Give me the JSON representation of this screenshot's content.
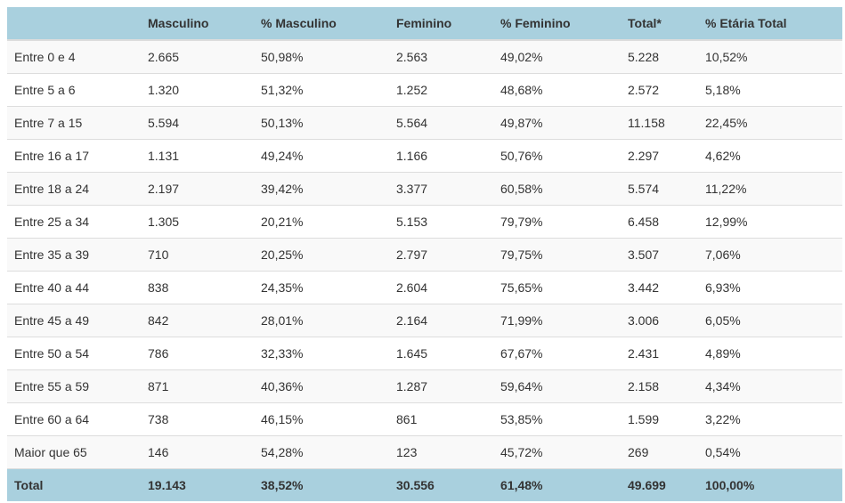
{
  "table": {
    "headers": [
      "",
      "Masculino",
      "% Masculino",
      "Feminino",
      "% Feminino",
      "Total*",
      "% Etária Total"
    ],
    "rows": [
      [
        "Entre 0 e 4",
        "2.665",
        "50,98%",
        "2.563",
        "49,02%",
        "5.228",
        "10,52%"
      ],
      [
        "Entre 5 a 6",
        "1.320",
        "51,32%",
        "1.252",
        "48,68%",
        "2.572",
        "5,18%"
      ],
      [
        "Entre 7 a 15",
        "5.594",
        "50,13%",
        "5.564",
        "49,87%",
        "11.158",
        "22,45%"
      ],
      [
        "Entre 16 a 17",
        "1.131",
        "49,24%",
        "1.166",
        "50,76%",
        "2.297",
        "4,62%"
      ],
      [
        "Entre 18 a 24",
        "2.197",
        "39,42%",
        "3.377",
        "60,58%",
        "5.574",
        "11,22%"
      ],
      [
        "Entre 25 a 34",
        "1.305",
        "20,21%",
        "5.153",
        "79,79%",
        "6.458",
        "12,99%"
      ],
      [
        "Entre 35 a 39",
        "710",
        "20,25%",
        "2.797",
        "79,75%",
        "3.507",
        "7,06%"
      ],
      [
        "Entre 40 a 44",
        "838",
        "24,35%",
        "2.604",
        "75,65%",
        "3.442",
        "6,93%"
      ],
      [
        "Entre 45 a 49",
        "842",
        "28,01%",
        "2.164",
        "71,99%",
        "3.006",
        "6,05%"
      ],
      [
        "Entre 50 a 54",
        "786",
        "32,33%",
        "1.645",
        "67,67%",
        "2.431",
        "4,89%"
      ],
      [
        "Entre 55 a 59",
        "871",
        "40,36%",
        "1.287",
        "59,64%",
        "2.158",
        "4,34%"
      ],
      [
        "Entre 60 a 64",
        "738",
        "46,15%",
        "861",
        "53,85%",
        "1.599",
        "3,22%"
      ],
      [
        "Maior que 65",
        "146",
        "54,28%",
        "123",
        "45,72%",
        "269",
        "0,54%"
      ]
    ],
    "footer": [
      "Total",
      "19.143",
      "38,52%",
      "30.556",
      "61,48%",
      "49.699",
      "100,00%"
    ]
  },
  "colors": {
    "header_bg": "#a9d0de",
    "row_alt_bg": "#f9f9f9",
    "text": "#333333"
  }
}
